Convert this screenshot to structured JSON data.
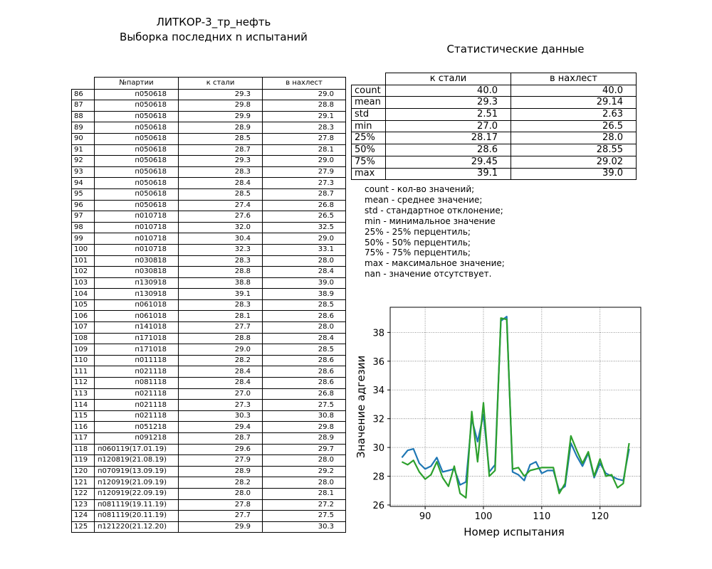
{
  "title": {
    "line1": "ЛИТКОР-3_тр_нефть",
    "line2": "Выборка последних n испытаний"
  },
  "trials_table": {
    "columns": [
      "№партии",
      "к стали",
      "в нахлест"
    ],
    "rows": [
      {
        "idx": "86",
        "batch": "п050618",
        "steel": "29.3",
        "overlap": "29.0"
      },
      {
        "idx": "87",
        "batch": "п050618",
        "steel": "29.8",
        "overlap": "28.8"
      },
      {
        "idx": "88",
        "batch": "п050618",
        "steel": "29.9",
        "overlap": "29.1"
      },
      {
        "idx": "89",
        "batch": "п050618",
        "steel": "28.9",
        "overlap": "28.3"
      },
      {
        "idx": "90",
        "batch": "п050618",
        "steel": "28.5",
        "overlap": "27.8"
      },
      {
        "idx": "91",
        "batch": "п050618",
        "steel": "28.7",
        "overlap": "28.1"
      },
      {
        "idx": "92",
        "batch": "п050618",
        "steel": "29.3",
        "overlap": "29.0"
      },
      {
        "idx": "93",
        "batch": "п050618",
        "steel": "28.3",
        "overlap": "27.9"
      },
      {
        "idx": "94",
        "batch": "п050618",
        "steel": "28.4",
        "overlap": "27.3"
      },
      {
        "idx": "95",
        "batch": "п050618",
        "steel": "28.5",
        "overlap": "28.7"
      },
      {
        "idx": "96",
        "batch": "п050618",
        "steel": "27.4",
        "overlap": "26.8"
      },
      {
        "idx": "97",
        "batch": "п010718",
        "steel": "27.6",
        "overlap": "26.5"
      },
      {
        "idx": "98",
        "batch": "п010718",
        "steel": "32.0",
        "overlap": "32.5"
      },
      {
        "idx": "99",
        "batch": "п010718",
        "steel": "30.4",
        "overlap": "29.0"
      },
      {
        "idx": "100",
        "batch": "п010718",
        "steel": "32.3",
        "overlap": "33.1"
      },
      {
        "idx": "101",
        "batch": "п030818",
        "steel": "28.3",
        "overlap": "28.0"
      },
      {
        "idx": "102",
        "batch": "п030818",
        "steel": "28.8",
        "overlap": "28.4"
      },
      {
        "idx": "103",
        "batch": "п130918",
        "steel": "38.8",
        "overlap": "39.0"
      },
      {
        "idx": "104",
        "batch": "п130918",
        "steel": "39.1",
        "overlap": "38.9"
      },
      {
        "idx": "105",
        "batch": "п061018",
        "steel": "28.3",
        "overlap": "28.5"
      },
      {
        "idx": "106",
        "batch": "п061018",
        "steel": "28.1",
        "overlap": "28.6"
      },
      {
        "idx": "107",
        "batch": "п141018",
        "steel": "27.7",
        "overlap": "28.0"
      },
      {
        "idx": "108",
        "batch": "п171018",
        "steel": "28.8",
        "overlap": "28.4"
      },
      {
        "idx": "109",
        "batch": "п171018",
        "steel": "29.0",
        "overlap": "28.5"
      },
      {
        "idx": "110",
        "batch": "п011118",
        "steel": "28.2",
        "overlap": "28.6"
      },
      {
        "idx": "111",
        "batch": "п021118",
        "steel": "28.4",
        "overlap": "28.6"
      },
      {
        "idx": "112",
        "batch": "п081118",
        "steel": "28.4",
        "overlap": "28.6"
      },
      {
        "idx": "113",
        "batch": "п021118",
        "steel": "27.0",
        "overlap": "26.8"
      },
      {
        "idx": "114",
        "batch": "п021118",
        "steel": "27.3",
        "overlap": "27.5"
      },
      {
        "idx": "115",
        "batch": "п021118",
        "steel": "30.3",
        "overlap": "30.8"
      },
      {
        "idx": "116",
        "batch": "п051218",
        "steel": "29.4",
        "overlap": "29.8"
      },
      {
        "idx": "117",
        "batch": "п091218",
        "steel": "28.7",
        "overlap": "28.9"
      },
      {
        "idx": "118",
        "batch": "п060119(17.01.19)",
        "steel": "29.6",
        "overlap": "29.7"
      },
      {
        "idx": "119",
        "batch": "п120819(21.08.19)",
        "steel": "27.9",
        "overlap": "28.0"
      },
      {
        "idx": "120",
        "batch": "п070919(13.09.19)",
        "steel": "28.9",
        "overlap": "29.2"
      },
      {
        "idx": "121",
        "batch": "п120919(21.09.19)",
        "steel": "28.2",
        "overlap": "28.0"
      },
      {
        "idx": "122",
        "batch": "п120919(22.09.19)",
        "steel": "28.0",
        "overlap": "28.1"
      },
      {
        "idx": "123",
        "batch": "п081119(19.11.19)",
        "steel": "27.8",
        "overlap": "27.2"
      },
      {
        "idx": "124",
        "batch": "п081119(20.11.19)",
        "steel": "27.7",
        "overlap": "27.5"
      },
      {
        "idx": "125",
        "batch": "п121220(21.12.20)",
        "steel": "29.9",
        "overlap": "30.3"
      }
    ]
  },
  "stats": {
    "title": "Статистические данные",
    "columns": [
      "к стали",
      "в нахлест"
    ],
    "rows": [
      {
        "name": "count",
        "steel": "40.0",
        "overlap": "40.0"
      },
      {
        "name": "mean",
        "steel": "29.3",
        "overlap": "29.14"
      },
      {
        "name": "std",
        "steel": "2.51",
        "overlap": "2.63"
      },
      {
        "name": "min",
        "steel": "27.0",
        "overlap": "26.5"
      },
      {
        "name": "25%",
        "steel": "28.17",
        "overlap": "28.0"
      },
      {
        "name": "50%",
        "steel": "28.6",
        "overlap": "28.55"
      },
      {
        "name": "75%",
        "steel": "29.45",
        "overlap": "29.02"
      },
      {
        "name": "max",
        "steel": "39.1",
        "overlap": "39.0"
      }
    ],
    "notes": [
      "count - кол-во значений;",
      "mean - среднее значение;",
      "std - стандартное отклонение;",
      "min - минимальное значение",
      "25% - 25% перцентиль;",
      "50% - 50% перцентиль;",
      "75% - 75% перцентиль;",
      "max - максимальное значение;",
      "nan - значение отсутствует."
    ]
  },
  "chart_data": {
    "type": "line",
    "xlabel": "Номер испытания",
    "ylabel": "Значение адгезии",
    "xlim": [
      84,
      127
    ],
    "ylim": [
      25.9,
      39.75
    ],
    "xticks": [
      90,
      100,
      110,
      120
    ],
    "yticks": [
      26,
      28,
      30,
      32,
      34,
      36,
      38
    ],
    "grid": true,
    "x": [
      86,
      87,
      88,
      89,
      90,
      91,
      92,
      93,
      94,
      95,
      96,
      97,
      98,
      99,
      100,
      101,
      102,
      103,
      104,
      105,
      106,
      107,
      108,
      109,
      110,
      111,
      112,
      113,
      114,
      115,
      116,
      117,
      118,
      119,
      120,
      121,
      122,
      123,
      124,
      125
    ],
    "series": [
      {
        "color": "#1f77b4",
        "values": [
          29.3,
          29.8,
          29.9,
          28.9,
          28.5,
          28.7,
          29.3,
          28.3,
          28.4,
          28.5,
          27.4,
          27.6,
          32.0,
          30.4,
          32.3,
          28.3,
          28.8,
          38.8,
          39.1,
          28.3,
          28.1,
          27.7,
          28.8,
          29.0,
          28.2,
          28.4,
          28.4,
          27.0,
          27.3,
          30.3,
          29.4,
          28.7,
          29.6,
          27.9,
          28.9,
          28.2,
          28.0,
          27.8,
          27.7,
          29.9
        ]
      },
      {
        "color": "#2ca02c",
        "values": [
          29.0,
          28.8,
          29.1,
          28.3,
          27.8,
          28.1,
          29.0,
          27.9,
          27.3,
          28.7,
          26.8,
          26.5,
          32.5,
          29.0,
          33.1,
          28.0,
          28.4,
          39.0,
          38.9,
          28.5,
          28.6,
          28.0,
          28.4,
          28.5,
          28.6,
          28.6,
          28.6,
          26.8,
          27.5,
          30.8,
          29.8,
          28.9,
          29.7,
          28.0,
          29.2,
          28.0,
          28.1,
          27.2,
          27.5,
          30.3
        ]
      }
    ]
  }
}
